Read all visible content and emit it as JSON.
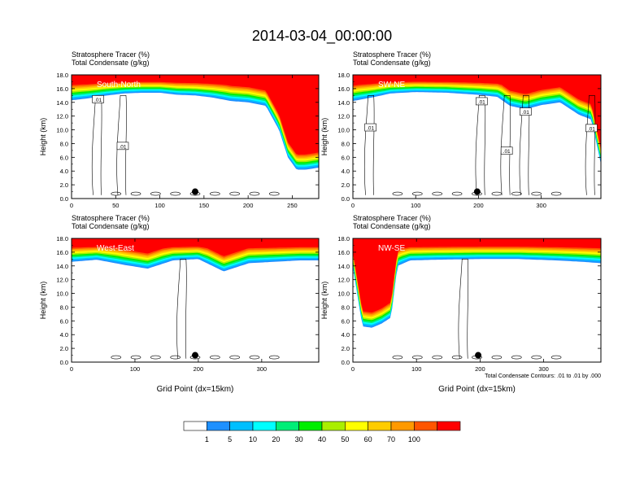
{
  "figure": {
    "title": "2014-03-04_00:00:00"
  },
  "colors": {
    "frame": "#000000",
    "contour": "#000000"
  },
  "chart_data": [
    {
      "type": "heatmap",
      "panel_label": "South-North",
      "title_line1": "Stratosphere Tracer   (%)",
      "title_line2": "Total Condensate   (g/kg)",
      "ylabel": "Height (km)",
      "xlabel": "",
      "xlim": [
        0,
        280
      ],
      "ylim": [
        0,
        18
      ],
      "xticks": [
        0,
        50,
        100,
        150,
        200,
        250
      ],
      "yticks": [
        0.0,
        2.0,
        4.0,
        6.0,
        8.0,
        10.0,
        12.0,
        14.0,
        16.0,
        18.0
      ],
      "marker": {
        "x": 140,
        "y": 1.0
      },
      "contour_labels": [
        {
          "text": ".01",
          "x": 30,
          "y": 14.4
        },
        {
          "text": ".01",
          "x": 58,
          "y": 7.6
        }
      ],
      "tracer_profile": {
        "x": [
          0,
          20,
          40,
          60,
          80,
          100,
          120,
          140,
          160,
          180,
          200,
          220,
          235,
          245,
          255,
          265,
          280
        ],
        "top": [
          18,
          18,
          18,
          18,
          18,
          18,
          18,
          18,
          18,
          18,
          18,
          18,
          18,
          18,
          18,
          18,
          18
        ],
        "bot": [
          14.3,
          14.6,
          15.0,
          15.3,
          15.4,
          15.4,
          15.1,
          15.0,
          14.7,
          14.2,
          14.0,
          13.5,
          10.0,
          6.0,
          4.2,
          4.2,
          4.5
        ]
      },
      "has_legend": false
    },
    {
      "type": "heatmap",
      "panel_label": "SW-NE",
      "title_line1": "Stratosphere Tracer   (%)",
      "title_line2": "Total Condensate   (g/kg)",
      "ylabel": "Height (km)",
      "xlabel": "",
      "xlim": [
        0,
        395
      ],
      "ylim": [
        0,
        18
      ],
      "xticks": [
        0,
        100,
        200,
        300
      ],
      "yticks": [
        0.0,
        2.0,
        4.0,
        6.0,
        8.0,
        10.0,
        12.0,
        14.0,
        16.0,
        18.0
      ],
      "marker": {
        "x": 198,
        "y": 1.0
      },
      "contour_labels": [
        {
          "text": ".01",
          "x": 28,
          "y": 10.3
        },
        {
          "text": ".01",
          "x": 205,
          "y": 14.1
        },
        {
          "text": ".01",
          "x": 245,
          "y": 6.9
        },
        {
          "text": ".01",
          "x": 275,
          "y": 12.6
        },
        {
          "text": ".01",
          "x": 380,
          "y": 10.2
        }
      ],
      "tracer_profile": {
        "x": [
          0,
          30,
          60,
          100,
          150,
          200,
          230,
          250,
          275,
          300,
          330,
          360,
          380,
          395
        ],
        "top": [
          18,
          18,
          18,
          18,
          18,
          18,
          18,
          18,
          18,
          18,
          18,
          18,
          18,
          18
        ],
        "bot": [
          14.2,
          14.7,
          15.3,
          15.5,
          15.4,
          15.1,
          14.8,
          13.5,
          13.0,
          13.6,
          14.0,
          12.2,
          11.5,
          5.0
        ]
      },
      "has_legend": false
    },
    {
      "type": "heatmap",
      "panel_label": "West-East",
      "title_line1": "Stratosphere Tracer   (%)",
      "title_line2": "Total Condensate   (g/kg)",
      "ylabel": "Height (km)",
      "xlabel": "Grid Point (dx=15km)",
      "xlim": [
        0,
        390
      ],
      "ylim": [
        0,
        18
      ],
      "xticks": [
        0,
        100,
        200,
        300
      ],
      "yticks": [
        0.0,
        2.0,
        4.0,
        6.0,
        8.0,
        10.0,
        12.0,
        14.0,
        16.0,
        18.0
      ],
      "marker": {
        "x": 195,
        "y": 1.0
      },
      "contour_labels": [],
      "tracer_profile": {
        "x": [
          0,
          40,
          80,
          120,
          160,
          200,
          240,
          280,
          320,
          360,
          390
        ],
        "top": [
          18,
          18,
          18,
          18,
          18,
          18,
          18,
          18,
          18,
          18,
          18
        ],
        "bot": [
          14.6,
          14.9,
          14.2,
          13.6,
          14.8,
          15.0,
          13.2,
          14.4,
          14.6,
          14.8,
          14.8
        ]
      },
      "has_legend": false
    },
    {
      "type": "heatmap",
      "panel_label": "NW-SE",
      "title_line1": "Stratosphere Tracer   (%)",
      "title_line2": "Total Condensate   (g/kg)",
      "ylabel": "Height (km)",
      "xlabel": "Grid Point (dx=15km)",
      "xlim": [
        0,
        390
      ],
      "ylim": [
        0,
        18
      ],
      "xticks": [
        0,
        100,
        200,
        300
      ],
      "yticks": [
        0.0,
        2.0,
        4.0,
        6.0,
        8.0,
        10.0,
        12.0,
        14.0,
        16.0,
        18.0
      ],
      "marker": {
        "x": 197,
        "y": 1.0
      },
      "contour_labels": [],
      "tracer_profile": {
        "x": [
          0,
          15,
          30,
          45,
          60,
          70,
          90,
          130,
          200,
          260,
          320,
          360,
          390
        ],
        "top": [
          18,
          18,
          18,
          18,
          18,
          18,
          18,
          18,
          18,
          18,
          18,
          18,
          18
        ],
        "bot": [
          13.8,
          5.2,
          5.0,
          5.6,
          6.5,
          14.0,
          14.8,
          14.9,
          15.0,
          15.0,
          14.8,
          14.6,
          14.4
        ]
      },
      "footnote": "Total Condensate Contours: .01 to .01 by .000",
      "has_legend": false
    }
  ],
  "colorbar": {
    "levels": [
      "1",
      "5",
      "10",
      "20",
      "30",
      "40",
      "50",
      "60",
      "70",
      "100"
    ],
    "colors": [
      "#ffffff",
      "#1e90ff",
      "#00bfff",
      "#00ffff",
      "#00ee77",
      "#00ee00",
      "#aaee00",
      "#ffff00",
      "#ffcc00",
      "#ff9900",
      "#ff5500",
      "#ff0000"
    ]
  }
}
